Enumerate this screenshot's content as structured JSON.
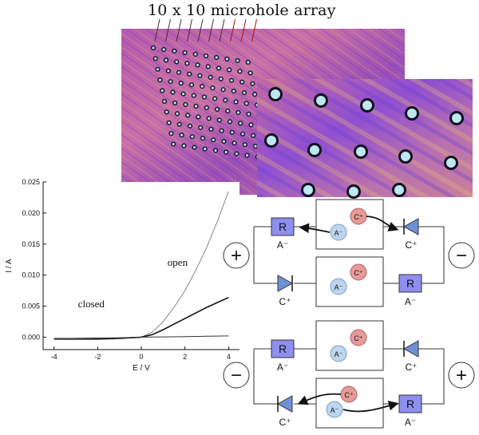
{
  "figure_title": "10 x 10 microhole array",
  "chart_data": {
    "type": "line",
    "xlabel": "E / V",
    "ylabel": "I / A",
    "xlim": [
      -4.5,
      4.5
    ],
    "ylim": [
      -0.002,
      0.025
    ],
    "x_ticks": [
      -4,
      -2,
      0,
      2,
      4
    ],
    "y_ticks": [
      0.0,
      0.005,
      0.01,
      0.015,
      0.02,
      0.025
    ],
    "x_tick_labels": [
      "-4",
      "-2",
      "0",
      "2",
      "4"
    ],
    "y_tick_labels": [
      "0.000",
      "0.005",
      "0.010",
      "0.015",
      "0.020",
      "0.025"
    ],
    "annotations": [
      {
        "text": "open",
        "x": 1.2,
        "y": 0.0115
      },
      {
        "text": "closed",
        "x": -2.9,
        "y": 0.0048
      }
    ],
    "series": [
      {
        "x": [
          -4,
          -3,
          -2,
          -1,
          0,
          0.5,
          1,
          1.5,
          2,
          2.5,
          3,
          3.5,
          4
        ],
        "y": [
          -0.0001,
          -0.0001,
          -0.0001,
          -0.0001,
          0,
          0.0008,
          0.0025,
          0.0048,
          0.0075,
          0.0108,
          0.0145,
          0.0188,
          0.0235
        ]
      },
      {
        "x": [
          -4,
          -3,
          -2,
          -1,
          0,
          0.5,
          1,
          1.5,
          2,
          2.5,
          3,
          3.5,
          4
        ],
        "y": [
          -0.0003,
          -0.0003,
          -0.0003,
          -0.0002,
          0,
          0.0004,
          0.0012,
          0.0021,
          0.003,
          0.0039,
          0.0048,
          0.0056,
          0.0064
        ]
      },
      {
        "x": [
          -4,
          -3,
          -2,
          -1,
          0,
          1,
          2,
          3,
          4
        ],
        "y": [
          -0.0003,
          -0.00025,
          -0.0002,
          -0.0001,
          0,
          5e-05,
          0.0001,
          0.00015,
          0.0002
        ]
      }
    ]
  },
  "diagram": {
    "resistor_label": "R",
    "anion_label": "A⁻",
    "cation_label": "C⁺",
    "plus_symbol": "+",
    "minus_symbol": "−",
    "anion_particle": "A⁻",
    "cation_particle": "C⁺"
  },
  "colors": {
    "resistor_fill": "#8f8ff0",
    "diode_fill": "#6f8fd8",
    "anion_fill": "#bcd6ef",
    "cation_fill": "#e79a9a",
    "micrograph_base": "#a54fae",
    "micrograph_hole": "#bde8ef"
  }
}
